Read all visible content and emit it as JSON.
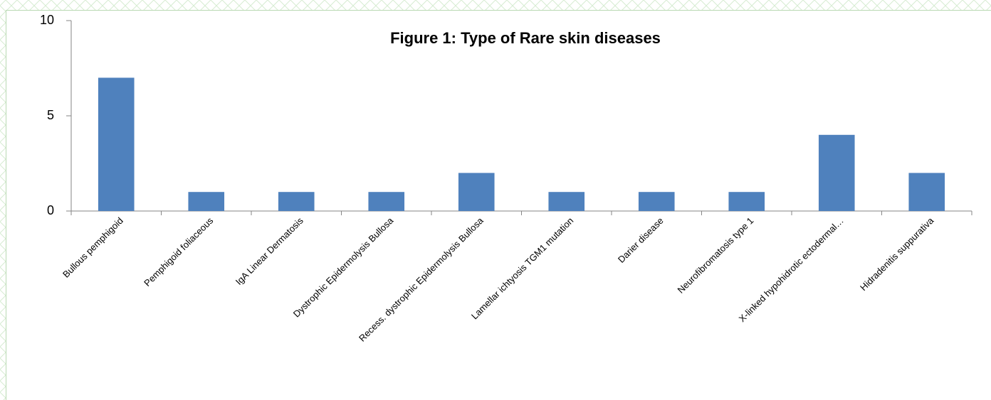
{
  "chart_data": {
    "type": "bar",
    "title": "Figure 1: Type of Rare skin diseases",
    "categories": [
      "Bullous pemphigoid",
      "Pemphigoid foliaceous",
      "IgA Linear Dermatosis",
      "Dystrophic Epidermolysis Bullosa",
      "Recess. dystrophic Epidermolysis Bullosa",
      "Lamellar ichtyosis TGM1 mutation",
      "Darier disease",
      "Neurofibromatosis type 1",
      "X-linked hypohidrotic ectodermal…",
      "Hidradenitis suppurativa"
    ],
    "values": [
      7,
      1,
      1,
      1,
      2,
      1,
      1,
      1,
      4,
      2
    ],
    "color": "#4f81bd",
    "ylim": [
      0,
      10
    ],
    "yticks": [
      0,
      5,
      10
    ],
    "grid": false
  }
}
